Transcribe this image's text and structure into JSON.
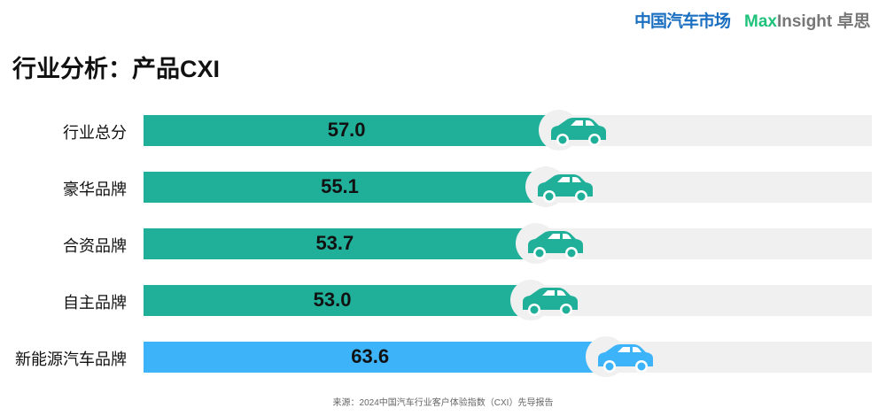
{
  "logos": {
    "cam": "中国汽车市场",
    "maxinsight_a": "Max",
    "maxinsight_b": "Insight 卓思"
  },
  "chart_data": {
    "type": "bar",
    "orientation": "horizontal",
    "title": "行业分析：产品CXI",
    "categories": [
      "行业总分",
      "豪华品牌",
      "合资品牌",
      "自主品牌",
      "新能源汽车品牌"
    ],
    "values": [
      57.0,
      55.1,
      53.7,
      53.0,
      63.6
    ],
    "value_labels": [
      "57.0",
      "55.1",
      "53.7",
      "53.0",
      "63.6"
    ],
    "colors": [
      "#20b09a",
      "#20b09a",
      "#20b09a",
      "#20b09a",
      "#3db4fa"
    ],
    "track_color": "#f0f0f0",
    "marker_icon": "car-icon",
    "source": "来源：2024中国汽车行业客户体验指数（CXI）先导报告"
  }
}
